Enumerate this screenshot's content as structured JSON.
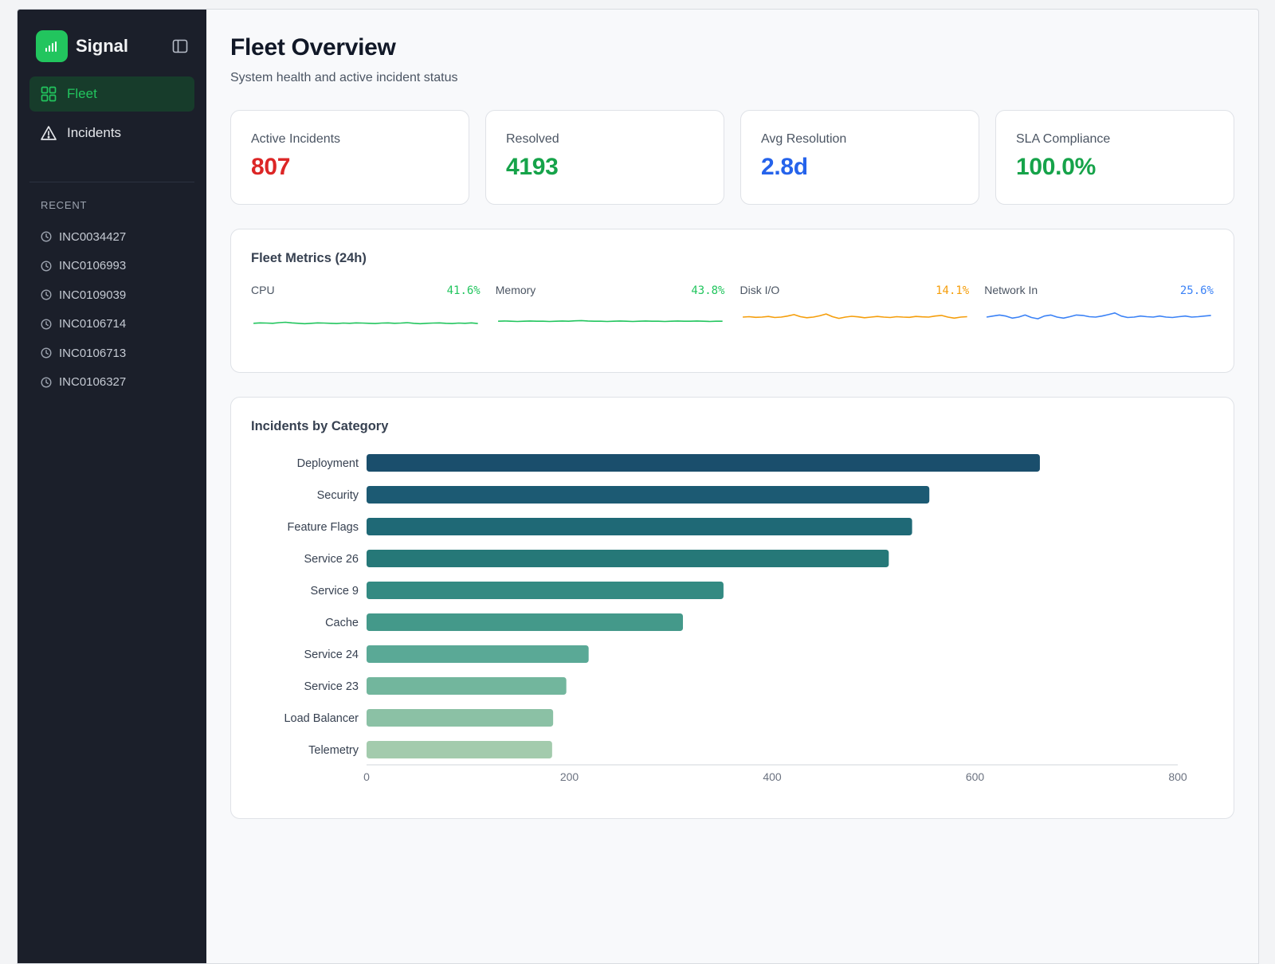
{
  "app": {
    "name": "Signal",
    "colors": {
      "accent": "#22c55e",
      "sidebar_bg": "#1b1f2a"
    }
  },
  "sidebar": {
    "nav": [
      {
        "label": "Fleet",
        "icon": "grid-icon",
        "active": true
      },
      {
        "label": "Incidents",
        "icon": "alert-triangle-icon",
        "active": false
      }
    ],
    "recent_label": "RECENT",
    "recent": [
      "INC0034427",
      "INC0106993",
      "INC0109039",
      "INC0106714",
      "INC0106713",
      "INC0106327"
    ]
  },
  "header": {
    "title": "Fleet Overview",
    "subtitle": "System health and active incident status"
  },
  "stats": [
    {
      "label": "Active Incidents",
      "value": "807",
      "color": "#dc2626"
    },
    {
      "label": "Resolved",
      "value": "4193",
      "color": "#16a34a"
    },
    {
      "label": "Avg Resolution",
      "value": "2.8d",
      "color": "#2563eb"
    },
    {
      "label": "SLA Compliance",
      "value": "100.0%",
      "color": "#16a34a"
    }
  ],
  "metrics": {
    "title": "Fleet Metrics (24h)",
    "items": [
      {
        "name": "CPU",
        "value": "41.6%",
        "color": "#22c55e",
        "trend": [
          0.2,
          0.22,
          0.21,
          0.2,
          0.23,
          0.25,
          0.22,
          0.2,
          0.18,
          0.2,
          0.22,
          0.21,
          0.2,
          0.19,
          0.21,
          0.2,
          0.22,
          0.21,
          0.2,
          0.19,
          0.21,
          0.22,
          0.2,
          0.21,
          0.23,
          0.2,
          0.18,
          0.2,
          0.21,
          0.22,
          0.2,
          0.19,
          0.21,
          0.2,
          0.22,
          0.19
        ]
      },
      {
        "name": "Memory",
        "value": "43.8%",
        "color": "#22c55e",
        "trend": [
          0.3,
          0.31,
          0.3,
          0.29,
          0.3,
          0.31,
          0.3,
          0.3,
          0.29,
          0.3,
          0.31,
          0.3,
          0.32,
          0.33,
          0.31,
          0.3,
          0.3,
          0.29,
          0.3,
          0.31,
          0.3,
          0.29,
          0.3,
          0.31,
          0.3,
          0.3,
          0.29,
          0.3,
          0.31,
          0.3,
          0.3,
          0.31,
          0.3,
          0.29,
          0.3,
          0.3
        ]
      },
      {
        "name": "Disk I/O",
        "value": "14.1%",
        "color": "#f59e0b",
        "trend": [
          0.5,
          0.52,
          0.49,
          0.5,
          0.53,
          0.48,
          0.5,
          0.55,
          0.62,
          0.52,
          0.47,
          0.5,
          0.56,
          0.65,
          0.52,
          0.44,
          0.5,
          0.54,
          0.51,
          0.47,
          0.5,
          0.53,
          0.5,
          0.48,
          0.52,
          0.5,
          0.49,
          0.53,
          0.51,
          0.5,
          0.55,
          0.58,
          0.5,
          0.45,
          0.5,
          0.52
        ]
      },
      {
        "name": "Network In",
        "value": "25.6%",
        "color": "#3b82f6",
        "trend": [
          0.5,
          0.55,
          0.6,
          0.55,
          0.45,
          0.5,
          0.6,
          0.48,
          0.42,
          0.55,
          0.6,
          0.5,
          0.45,
          0.52,
          0.6,
          0.58,
          0.52,
          0.5,
          0.55,
          0.62,
          0.7,
          0.55,
          0.48,
          0.5,
          0.55,
          0.52,
          0.5,
          0.55,
          0.5,
          0.48,
          0.52,
          0.55,
          0.5,
          0.52,
          0.55,
          0.58
        ]
      }
    ]
  },
  "chart_data": {
    "type": "bar",
    "orientation": "horizontal",
    "title": "Incidents by Category",
    "categories": [
      "Deployment",
      "Security",
      "Feature Flags",
      "Service 26",
      "Service 9",
      "Cache",
      "Service 24",
      "Service 23",
      "Load Balancer",
      "Telemetry"
    ],
    "values": [
      664,
      555,
      538,
      515,
      352,
      312,
      219,
      197,
      184,
      183
    ],
    "colors": [
      "#1a4e6c",
      "#1c5a73",
      "#1f6976",
      "#267878",
      "#338a82",
      "#44998a",
      "#5aa996",
      "#72b69d",
      "#8bc1a5",
      "#a3cbad"
    ],
    "xlim": [
      0,
      800
    ],
    "xticks": [
      0,
      200,
      400,
      600,
      800
    ],
    "grid": false,
    "legend": "none"
  }
}
